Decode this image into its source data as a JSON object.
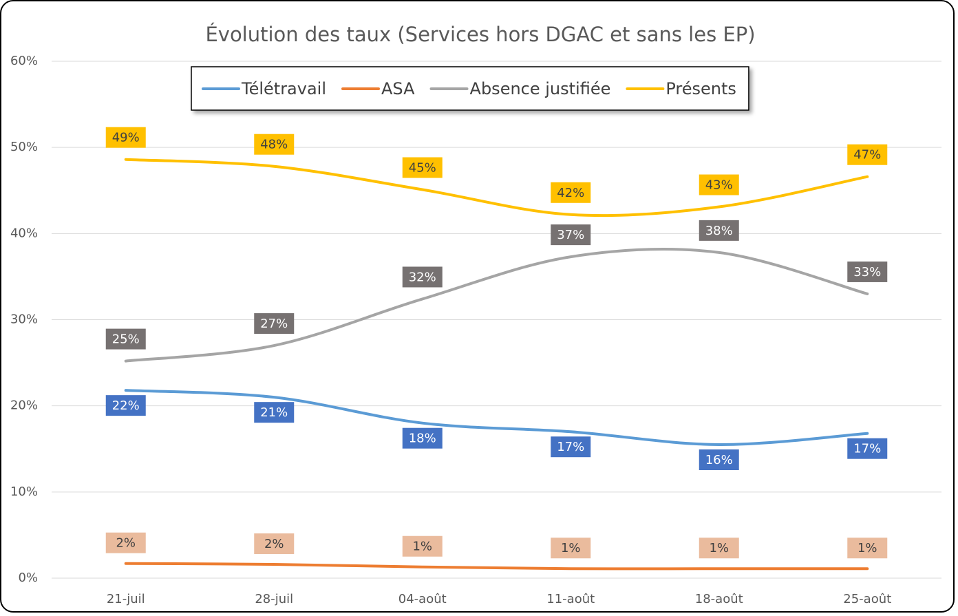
{
  "chart_data": {
    "type": "line",
    "title": "Évolution des taux (Services hors DGAC et sans les EP)",
    "categories": [
      "21-juil",
      "28-juil",
      "04-août",
      "11-août",
      "18-août",
      "25-août"
    ],
    "series": [
      {
        "name": "Télétravail",
        "color": "#5b9bd5",
        "values": [
          21.8,
          21.0,
          18.0,
          17.0,
          15.5,
          16.8
        ],
        "value_labels": [
          "22%",
          "21%",
          "18%",
          "17%",
          "16%",
          "17%"
        ]
      },
      {
        "name": "ASA",
        "color": "#ed7d31",
        "values": [
          1.7,
          1.6,
          1.3,
          1.1,
          1.1,
          1.1
        ],
        "value_labels": [
          "2%",
          "2%",
          "1%",
          "1%",
          "1%",
          "1%"
        ]
      },
      {
        "name": "Absence justifiée",
        "color": "#a5a5a5",
        "values": [
          25.2,
          27.0,
          32.4,
          37.3,
          37.8,
          33.0
        ],
        "value_labels": [
          "25%",
          "27%",
          "32%",
          "37%",
          "38%",
          "33%"
        ]
      },
      {
        "name": "Présents",
        "color": "#ffc000",
        "values": [
          48.6,
          47.8,
          45.1,
          42.2,
          43.1,
          46.6
        ],
        "value_labels": [
          "49%",
          "48%",
          "45%",
          "42%",
          "43%",
          "47%"
        ]
      }
    ],
    "ylim": [
      0,
      60
    ],
    "yticks": [
      {
        "value": 0,
        "label": "0%"
      },
      {
        "value": 10,
        "label": "10%"
      },
      {
        "value": 20,
        "label": "20%"
      },
      {
        "value": 30,
        "label": "30%"
      },
      {
        "value": 40,
        "label": "40%"
      },
      {
        "value": 50,
        "label": "50%"
      },
      {
        "value": 60,
        "label": "60%"
      }
    ],
    "grid": true,
    "legend": "top",
    "smooth": true
  }
}
